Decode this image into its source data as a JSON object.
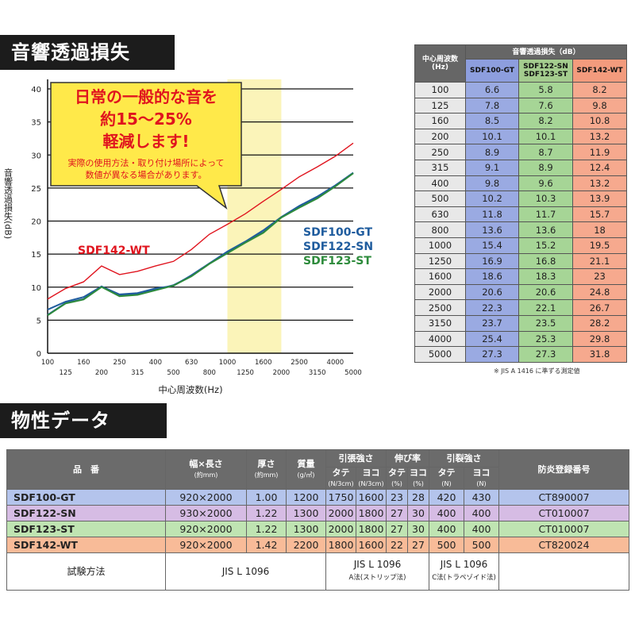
{
  "section1_title": "音響透過損失",
  "section2_title": "物性データ",
  "callout": {
    "line1": "日常の一般的な音を",
    "line2": "約15～25%",
    "line3": "軽減します!",
    "sub1": "実際の使用方法・取り付け場所によって",
    "sub2": "数値が異なる場合があります。"
  },
  "chart_data": {
    "type": "line",
    "ylabel": "音響透過損失(dB)",
    "xlabel": "中心周波数(Hz)",
    "ylim": [
      0,
      40
    ],
    "yticks": [
      0,
      5,
      10,
      15,
      20,
      25,
      30,
      35,
      40
    ],
    "x": [
      "100",
      "125",
      "160",
      "200",
      "250",
      "315",
      "400",
      "500",
      "630",
      "800",
      "1000",
      "1250",
      "1600",
      "2000",
      "2500",
      "3150",
      "4000",
      "5000"
    ],
    "highlight_range": [
      "1000",
      "2000"
    ],
    "series": [
      {
        "name": "SDF100-GT",
        "color": "#1f5c9e",
        "values": [
          6.6,
          7.8,
          8.5,
          10.1,
          8.9,
          9.1,
          9.8,
          10.2,
          11.8,
          13.6,
          15.4,
          16.9,
          18.6,
          20.6,
          22.3,
          23.7,
          25.4,
          27.3
        ]
      },
      {
        "name": "SDF122-SN",
        "color": "#1f5c9e",
        "values": [
          5.8,
          7.6,
          8.2,
          10.1,
          8.7,
          8.9,
          9.6,
          10.3,
          11.7,
          13.6,
          15.2,
          16.8,
          18.3,
          20.6,
          22.1,
          23.5,
          25.3,
          27.3
        ]
      },
      {
        "name": "SDF123-ST",
        "color": "#2e8b3c",
        "values": [
          5.8,
          7.6,
          8.2,
          10.1,
          8.7,
          8.9,
          9.6,
          10.3,
          11.7,
          13.6,
          15.2,
          16.8,
          18.3,
          20.6,
          22.1,
          23.5,
          25.3,
          27.3
        ]
      },
      {
        "name": "SDF142-WT",
        "color": "#e0141e",
        "values": [
          8.2,
          9.8,
          10.8,
          13.2,
          11.9,
          12.4,
          13.2,
          13.9,
          15.7,
          18,
          19.5,
          21.1,
          23,
          24.8,
          26.7,
          28.2,
          29.8,
          31.8
        ]
      }
    ],
    "legend": [
      "SDF142-WT",
      "SDF100-GT",
      "SDF122-SN",
      "SDF123-ST"
    ]
  },
  "stl_table": {
    "header_main": "音響透過損失（dB）",
    "header_freq": "中心周波数(Hz)",
    "col1": "SDF100-GT",
    "col2a": "SDF122-SN",
    "col2b": "SDF123-ST",
    "col3": "SDF142-WT",
    "rows": [
      [
        "100",
        "6.6",
        "5.8",
        "8.2"
      ],
      [
        "125",
        "7.8",
        "7.6",
        "9.8"
      ],
      [
        "160",
        "8.5",
        "8.2",
        "10.8"
      ],
      [
        "200",
        "10.1",
        "10.1",
        "13.2"
      ],
      [
        "250",
        "8.9",
        "8.7",
        "11.9"
      ],
      [
        "315",
        "9.1",
        "8.9",
        "12.4"
      ],
      [
        "400",
        "9.8",
        "9.6",
        "13.2"
      ],
      [
        "500",
        "10.2",
        "10.3",
        "13.9"
      ],
      [
        "630",
        "11.8",
        "11.7",
        "15.7"
      ],
      [
        "800",
        "13.6",
        "13.6",
        "18"
      ],
      [
        "1000",
        "15.4",
        "15.2",
        "19.5"
      ],
      [
        "1250",
        "16.9",
        "16.8",
        "21.1"
      ],
      [
        "1600",
        "18.6",
        "18.3",
        "23"
      ],
      [
        "2000",
        "20.6",
        "20.6",
        "24.8"
      ],
      [
        "2500",
        "22.3",
        "22.1",
        "26.7"
      ],
      [
        "3150",
        "23.7",
        "23.5",
        "28.2"
      ],
      [
        "4000",
        "25.4",
        "25.3",
        "29.8"
      ],
      [
        "5000",
        "27.3",
        "27.3",
        "31.8"
      ]
    ],
    "note": "※ JIS A 1416 に準ずる測定値"
  },
  "props": {
    "h_name": "品　番",
    "h_size": "幅×長さ",
    "h_size_unit": "(約mm)",
    "h_thick": "厚さ",
    "h_thick_unit": "(約mm)",
    "h_weight": "質量",
    "h_weight_unit": "(g/㎡)",
    "h_tensile": "引張強さ",
    "h_elong": "伸び率",
    "h_tear": "引裂強さ",
    "h_fire": "防炎登録番号",
    "h_tate": "タテ",
    "h_yoko": "ヨコ",
    "u_tensile": "(N/3cm)",
    "u_elong": "(%)",
    "u_tear": "(N)",
    "rows": [
      [
        "SDF100-GT",
        "920×2000",
        "1.00",
        "1200",
        "1750",
        "1600",
        "23",
        "28",
        "420",
        "430",
        "CT890007"
      ],
      [
        "SDF122-SN",
        "930×2000",
        "1.22",
        "1300",
        "2000",
        "1800",
        "27",
        "30",
        "400",
        "400",
        "CT010007"
      ],
      [
        "SDF123-ST",
        "920×2000",
        "1.22",
        "1300",
        "2000",
        "1800",
        "27",
        "30",
        "400",
        "400",
        "CT010007"
      ],
      [
        "SDF142-WT",
        "920×2000",
        "1.42",
        "2200",
        "1800",
        "1600",
        "22",
        "27",
        "500",
        "500",
        "CT820024"
      ]
    ],
    "test_label": "試験方法",
    "test_jis1": "JIS L 1096",
    "test_jis2": "JIS L 1096",
    "test_jis2_sub": "A法(ストリップ法)",
    "test_jis3": "JIS L 1096",
    "test_jis3_sub": "C法(トラペゾイド法)"
  }
}
